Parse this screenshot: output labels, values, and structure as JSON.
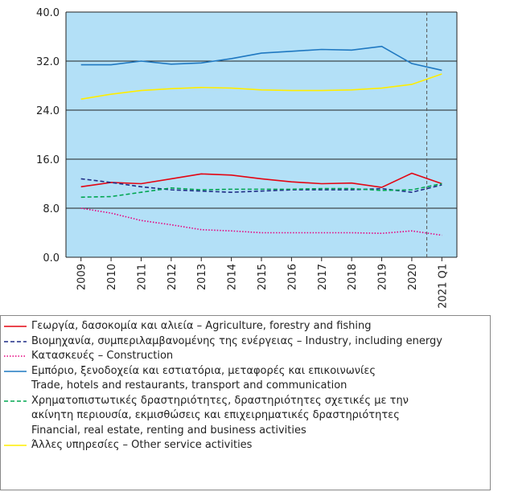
{
  "chart_data": {
    "type": "line",
    "categories": [
      "2009",
      "2010",
      "2011",
      "2012",
      "2013",
      "2014",
      "2015",
      "2016",
      "2017",
      "2018",
      "2019",
      "2020",
      "2021 Q1"
    ],
    "ylim": [
      0,
      40
    ],
    "yticks": [
      {
        "value": 0,
        "label": "0.0"
      },
      {
        "value": 8,
        "label": "8.0"
      },
      {
        "value": 16,
        "label": "16.0"
      },
      {
        "value": 24,
        "label": "24.0"
      },
      {
        "value": 32,
        "label": "32.0"
      },
      {
        "value": 40,
        "label": "40.0"
      }
    ],
    "grid": true,
    "background": "#b3e0f7",
    "series": [
      {
        "name": "Γεωργία, δασοκομία και αλιεία – Agriculture, forestry and fishing",
        "color": "#e30613",
        "style": "solid",
        "values": [
          11.5,
          12.2,
          12.0,
          12.8,
          13.6,
          13.4,
          12.8,
          12.3,
          12.0,
          12.1,
          11.4,
          13.7,
          12.0
        ]
      },
      {
        "name": "Βιομηχανία, συμπεριλαμβανομένης της ενέργειας – Industry, including energy",
        "color": "#1f2d86",
        "style": "dashed",
        "values": [
          12.8,
          12.2,
          11.5,
          11.0,
          10.8,
          10.6,
          10.8,
          11.0,
          11.0,
          11.0,
          11.2,
          10.6,
          11.8
        ]
      },
      {
        "name": "Κατασκευές – Construction",
        "color": "#e6007e",
        "style": "dotted",
        "values": [
          8.0,
          7.2,
          6.0,
          5.3,
          4.5,
          4.3,
          4.0,
          4.0,
          4.0,
          4.0,
          3.9,
          4.3,
          3.6
        ]
      },
      {
        "name": "Εμπόριο, ξενοδοχεία και εστιατόρια, μεταφορές και επικοινωνίες\nTrade, hotels and restaurants, transport and communication",
        "color": "#1f78c1",
        "style": "solid",
        "values": [
          31.4,
          31.4,
          32.0,
          31.5,
          31.7,
          32.4,
          33.3,
          33.6,
          33.9,
          33.8,
          34.4,
          31.6,
          30.5
        ]
      },
      {
        "name": "Χρηματοπιστωτικές δραστηριότητες, δραστηριότητες σχετικές με την\nακίνητη περιουσία, εκμισθώσεις και επιχειρηματικές δραστηριότητες\nFinancial, real estate, renting and business activities",
        "color": "#00a651",
        "style": "dashed",
        "values": [
          9.8,
          9.9,
          10.6,
          11.3,
          11.0,
          11.1,
          11.1,
          11.1,
          11.2,
          11.2,
          10.9,
          11.0,
          12.0
        ]
      },
      {
        "name": "Άλλες υπηρεσίες – Other service activities",
        "color": "#ffed00",
        "style": "solid",
        "values": [
          25.8,
          26.6,
          27.2,
          27.5,
          27.7,
          27.6,
          27.3,
          27.2,
          27.2,
          27.3,
          27.6,
          28.2,
          29.9
        ]
      }
    ]
  }
}
